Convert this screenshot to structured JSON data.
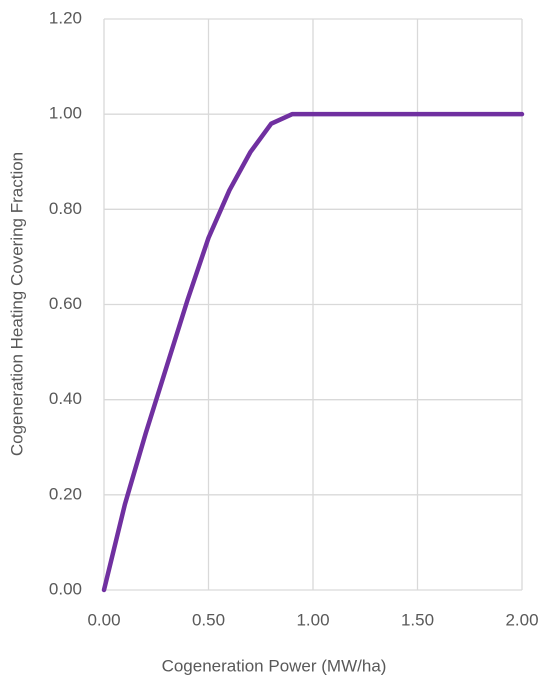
{
  "chart_data": {
    "type": "line",
    "x_label": "Cogeneration Power (MW/ha)",
    "y_label": "Cogeneration Heating Covering Fraction",
    "x": [
      0,
      0.1,
      0.2,
      0.3,
      0.4,
      0.5,
      0.6,
      0.7,
      0.8,
      0.9,
      1.0,
      1.5,
      2.0
    ],
    "series": [
      {
        "color": "#7030a0",
        "values": [
          0,
          0.18,
          0.33,
          0.47,
          0.61,
          0.74,
          0.84,
          0.92,
          0.98,
          1.0,
          1.0,
          1.0,
          1.0
        ]
      }
    ],
    "xlim": [
      0,
      2
    ],
    "xticks": [
      {
        "value": 0,
        "label": "0.00"
      },
      {
        "value": 0.5,
        "label": "0.50"
      },
      {
        "value": 1,
        "label": "1.00"
      },
      {
        "value": 1.5,
        "label": "1.50"
      },
      {
        "value": 2,
        "label": "2.00"
      }
    ],
    "ylim": [
      0,
      1.2
    ],
    "yticks": [
      {
        "value": 0,
        "label": "0.00"
      },
      {
        "value": 0.2,
        "label": "0.20"
      },
      {
        "value": 0.4,
        "label": "0.40"
      },
      {
        "value": 0.6,
        "label": "0.60"
      },
      {
        "value": 0.8,
        "label": "0.80"
      },
      {
        "value": 1,
        "label": "1.00"
      },
      {
        "value": 1.2,
        "label": "1.20"
      }
    ],
    "grid": true
  }
}
